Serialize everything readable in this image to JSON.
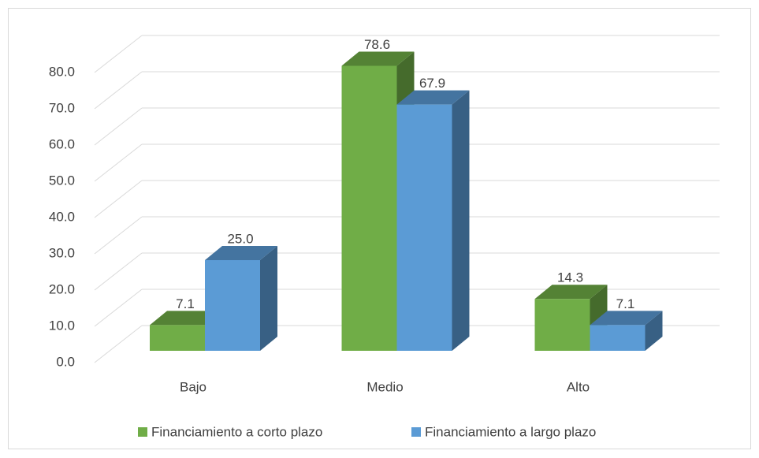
{
  "chart_data": {
    "type": "bar3d",
    "categories": [
      "Bajo",
      "Medio",
      "Alto"
    ],
    "series": [
      {
        "name": "Financiamiento a corto plazo",
        "color": "#70ad47",
        "values": [
          7.1,
          78.6,
          14.3
        ],
        "value_labels": [
          "7.1",
          "78.6",
          "14.3"
        ]
      },
      {
        "name": "Financiamiento a largo plazo",
        "color": "#5b9bd5",
        "values": [
          25,
          67.9,
          7.1
        ],
        "value_labels": [
          "25.0",
          "67.9",
          "7.1"
        ]
      }
    ],
    "ylim": [
      0,
      80
    ],
    "yticks": [
      {
        "value": 0,
        "label": "0.0"
      },
      {
        "value": 10,
        "label": "10.0"
      },
      {
        "value": 20,
        "label": "20.0"
      },
      {
        "value": 30,
        "label": "30.0"
      },
      {
        "value": 40,
        "label": "40.0"
      },
      {
        "value": 50,
        "label": "50.0"
      },
      {
        "value": 60,
        "label": "60.0"
      },
      {
        "value": 70,
        "label": "70.0"
      },
      {
        "value": 80,
        "label": "80.0"
      }
    ],
    "grid": true,
    "legend": "bottom"
  }
}
